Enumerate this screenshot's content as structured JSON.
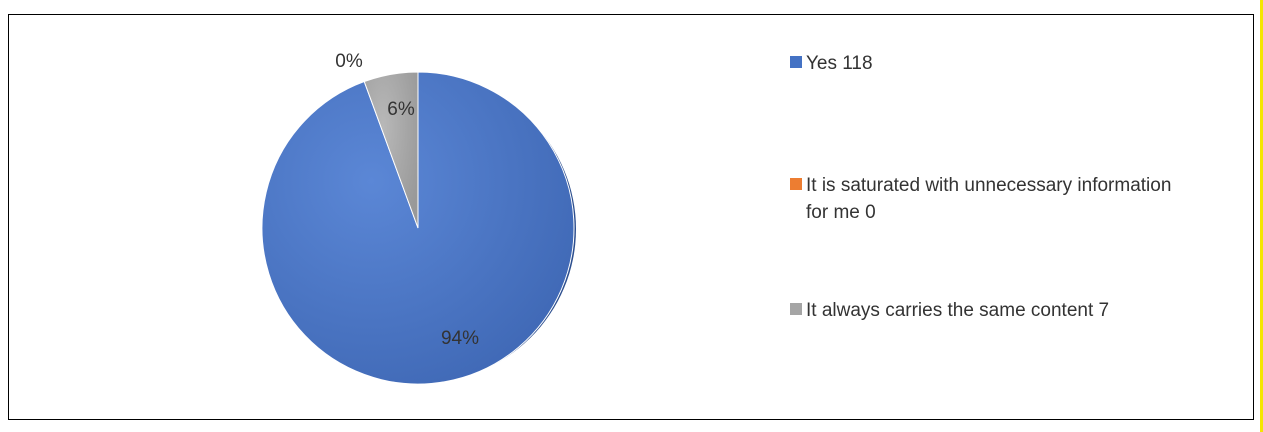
{
  "chart_data": {
    "type": "pie",
    "slices": [
      {
        "label": "Yes",
        "value": 118,
        "percent_label": "94%",
        "color": "#4472C4"
      },
      {
        "label": "It is saturated with unnecessary information for me",
        "value": 0,
        "percent_label": "0%",
        "color": "#ED7D31"
      },
      {
        "label": "It always carries the same content",
        "value": 7,
        "percent_label": "6%",
        "color": "#A5A5A5"
      }
    ],
    "legend": {
      "placement": "right",
      "entries": [
        "Yes 118",
        "It is saturated with unnecessary information for me 0",
        "It always carries the same content 7"
      ]
    }
  }
}
